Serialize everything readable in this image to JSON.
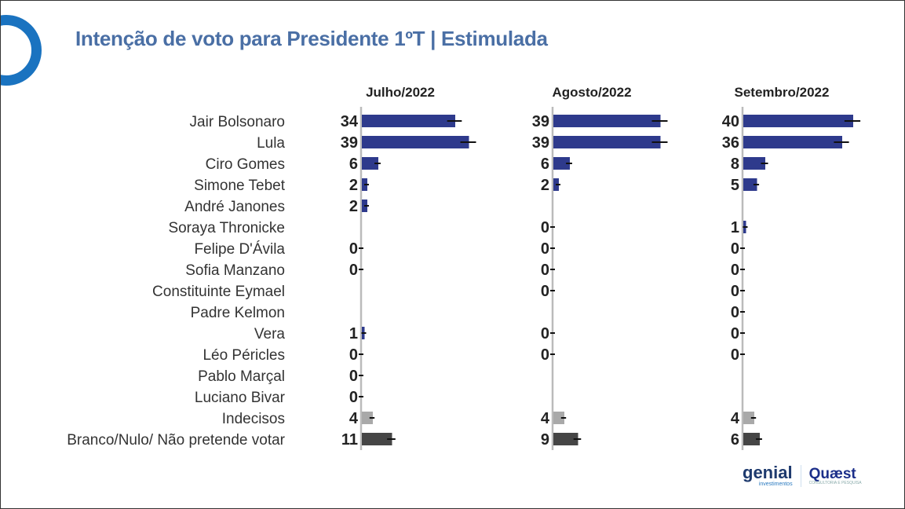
{
  "title": "Intenção de voto para Presidente 1ºT | Estimulada",
  "brands": {
    "genial": "genial",
    "genial_sub": "investimentos",
    "quaest": "Quæst",
    "quaest_sub": "CONSULTORIA E PESQUISA"
  },
  "chart_data": {
    "type": "bar",
    "orientation": "horizontal",
    "title": "Intenção de voto para Presidente 1ºT | Estimulada",
    "categories": [
      "Jair Bolsonaro",
      "Lula",
      "Ciro Gomes",
      "Simone Tebet",
      "André Janones",
      "Soraya Thronicke",
      "Felipe D'Ávila",
      "Sofia Manzano",
      "Constituinte Eymael",
      "Padre Kelmon",
      "Vera",
      "Léo Péricles",
      "Pablo Marçal",
      "Luciano Bivar",
      "Indecisos",
      "Branco/Nulo/ Não pretende votar"
    ],
    "series": [
      {
        "name": "Julho/2022",
        "values": [
          34,
          39,
          6,
          2,
          2,
          null,
          0,
          0,
          null,
          null,
          1,
          0,
          0,
          0,
          4,
          11
        ]
      },
      {
        "name": "Agosto/2022",
        "values": [
          39,
          39,
          6,
          2,
          null,
          0,
          0,
          0,
          0,
          null,
          0,
          0,
          null,
          null,
          4,
          9
        ]
      },
      {
        "name": "Setembro/2022",
        "values": [
          40,
          36,
          8,
          5,
          null,
          1,
          0,
          0,
          0,
          0,
          0,
          0,
          null,
          null,
          4,
          6
        ]
      }
    ],
    "error_bars": true,
    "colors": {
      "candidate": "#2e3a8c",
      "undecided": "#a9a9a9",
      "blank": "#454545",
      "axis": "#bbbbbb"
    }
  }
}
